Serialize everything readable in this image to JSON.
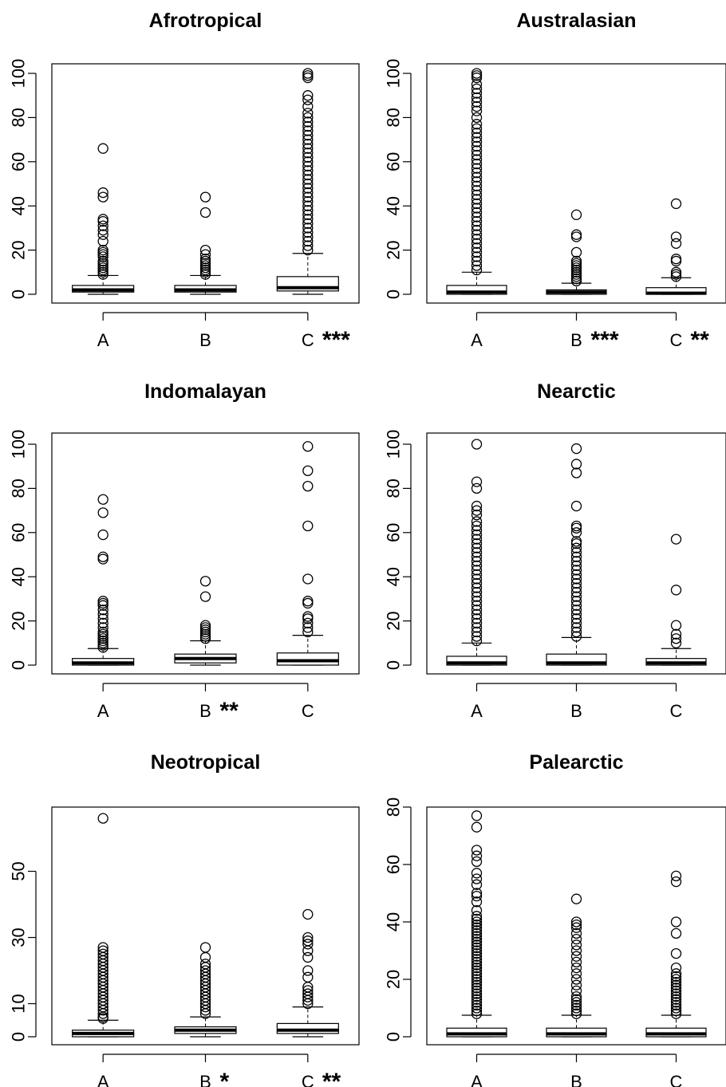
{
  "chart_data": [
    {
      "type": "boxplot",
      "title": "Afrotropical",
      "categories": [
        "A",
        "B",
        "C"
      ],
      "significance": [
        "",
        "",
        "***"
      ],
      "yticks": [
        0,
        20,
        40,
        60,
        80,
        100
      ],
      "ylim": [
        0,
        100
      ],
      "boxes": [
        {
          "whisker_low": 0,
          "q1": 1,
          "median": 2,
          "q3": 4,
          "whisker_high": 8.5,
          "outliers": [
            9,
            10,
            11,
            12,
            13,
            14,
            15,
            17,
            18,
            19,
            20,
            24,
            27,
            29,
            31,
            33,
            34,
            44,
            46,
            66
          ]
        },
        {
          "whisker_low": 0,
          "q1": 1,
          "median": 2,
          "q3": 4,
          "whisker_high": 8.5,
          "outliers": [
            9,
            10,
            11,
            12,
            13,
            14,
            15,
            16,
            18,
            20,
            37,
            44
          ]
        },
        {
          "whisker_low": 0,
          "q1": 1.5,
          "median": 3,
          "q3": 8,
          "whisker_high": 18.5,
          "outliers": [
            20,
            22,
            24,
            26,
            28,
            30,
            32,
            34,
            36,
            38,
            40,
            42,
            44,
            46,
            48,
            50,
            52,
            54,
            56,
            58,
            60,
            62,
            64,
            66,
            68,
            70,
            72,
            74,
            76,
            78,
            80,
            82,
            85,
            88,
            90,
            98,
            99,
            100
          ]
        }
      ]
    },
    {
      "type": "boxplot",
      "title": "Australasian",
      "categories": [
        "A",
        "B",
        "C"
      ],
      "significance": [
        "",
        "***",
        "**"
      ],
      "yticks": [
        0,
        20,
        40,
        60,
        80,
        100
      ],
      "ylim": [
        0,
        100
      ],
      "boxes": [
        {
          "whisker_low": 0,
          "q1": 0,
          "median": 1,
          "q3": 4,
          "whisker_high": 10,
          "outliers": [
            11,
            13,
            15,
            17,
            19,
            21,
            23,
            25,
            27,
            29,
            31,
            33,
            35,
            37,
            39,
            41,
            43,
            45,
            47,
            49,
            51,
            53,
            55,
            57,
            59,
            61,
            63,
            65,
            67,
            69,
            71,
            73,
            75,
            77,
            80,
            83,
            85,
            87,
            89,
            91,
            93,
            95,
            98,
            99,
            100
          ]
        },
        {
          "whisker_low": 0,
          "q1": 0,
          "median": 1,
          "q3": 2,
          "whisker_high": 5,
          "outliers": [
            6,
            7,
            8,
            9,
            10,
            11,
            12,
            13,
            14,
            15,
            19,
            26,
            27,
            36
          ]
        },
        {
          "whisker_low": 0,
          "q1": 0,
          "median": 0.5,
          "q3": 3,
          "whisker_high": 7.5,
          "outliers": [
            8,
            9,
            10,
            15,
            16,
            23,
            26,
            41
          ]
        }
      ]
    },
    {
      "type": "boxplot",
      "title": "Indomalayan",
      "categories": [
        "A",
        "B",
        "C"
      ],
      "significance": [
        "",
        "**",
        ""
      ],
      "yticks": [
        0,
        20,
        40,
        60,
        80,
        100
      ],
      "ylim": [
        0,
        100
      ],
      "boxes": [
        {
          "whisker_low": 0,
          "q1": 0,
          "median": 1,
          "q3": 3,
          "whisker_high": 7.5,
          "outliers": [
            8,
            9,
            10,
            11,
            12,
            13,
            14,
            15,
            17,
            19,
            21,
            23,
            25,
            27,
            28,
            29,
            48,
            49,
            59,
            69,
            75
          ]
        },
        {
          "whisker_low": 0,
          "q1": 1,
          "median": 3,
          "q3": 5,
          "whisker_high": 11,
          "outliers": [
            12,
            13,
            14,
            15,
            16,
            17,
            18,
            31,
            38
          ]
        },
        {
          "whisker_low": 0,
          "q1": 0,
          "median": 2,
          "q3": 5.5,
          "whisker_high": 13.5,
          "outliers": [
            15,
            17,
            19,
            21,
            22,
            28,
            29,
            39,
            63,
            81,
            88,
            99
          ]
        }
      ]
    },
    {
      "type": "boxplot",
      "title": "Nearctic",
      "categories": [
        "A",
        "B",
        "C"
      ],
      "significance": [
        "",
        "",
        ""
      ],
      "yticks": [
        0,
        20,
        40,
        60,
        80,
        100
      ],
      "ylim": [
        0,
        100
      ],
      "boxes": [
        {
          "whisker_low": 0,
          "q1": 0,
          "median": 1,
          "q3": 4,
          "whisker_high": 10,
          "outliers": [
            11,
            13,
            15,
            17,
            19,
            21,
            23,
            25,
            27,
            29,
            31,
            33,
            35,
            37,
            39,
            41,
            43,
            45,
            47,
            49,
            51,
            53,
            55,
            57,
            59,
            61,
            63,
            65,
            68,
            70,
            72,
            80,
            83,
            100
          ]
        },
        {
          "whisker_low": 0,
          "q1": 0,
          "median": 1,
          "q3": 5,
          "whisker_high": 12.5,
          "outliers": [
            13,
            15,
            17,
            19,
            21,
            23,
            25,
            27,
            29,
            31,
            33,
            35,
            37,
            39,
            41,
            43,
            45,
            47,
            49,
            51,
            53,
            55,
            56,
            60,
            62,
            63,
            72,
            87,
            91,
            98
          ]
        },
        {
          "whisker_low": 0,
          "q1": 0,
          "median": 1,
          "q3": 3,
          "whisker_high": 7.5,
          "outliers": [
            10,
            12,
            14,
            18,
            34,
            57
          ]
        }
      ]
    },
    {
      "type": "boxplot",
      "title": "Neotropical",
      "categories": [
        "A",
        "B",
        "C"
      ],
      "significance": [
        "",
        "*",
        "**"
      ],
      "yticks": [
        0,
        10,
        30,
        50
      ],
      "ylim": [
        0,
        67
      ],
      "boxes": [
        {
          "whisker_low": 0,
          "q1": 0,
          "median": 1,
          "q3": 2,
          "whisker_high": 5,
          "outliers": [
            5.5,
            6,
            7,
            8,
            9,
            10,
            11,
            12,
            13,
            14,
            15,
            16,
            17,
            18,
            19,
            20,
            21,
            22,
            23,
            24,
            25,
            26,
            27,
            66
          ]
        },
        {
          "whisker_low": 0,
          "q1": 1,
          "median": 2,
          "q3": 3,
          "whisker_high": 6,
          "outliers": [
            7,
            8,
            9,
            10,
            11,
            12,
            13,
            14,
            15,
            16,
            17,
            18,
            19,
            20,
            21,
            22,
            24,
            27
          ]
        },
        {
          "whisker_low": 0,
          "q1": 1,
          "median": 2,
          "q3": 4,
          "whisker_high": 9,
          "outliers": [
            10,
            11,
            12,
            13,
            14,
            15,
            18,
            20,
            24,
            26,
            28,
            29,
            30,
            37
          ]
        }
      ]
    },
    {
      "type": "boxplot",
      "title": "Palearctic",
      "categories": [
        "A",
        "B",
        "C"
      ],
      "significance": [
        "",
        "",
        ""
      ],
      "yticks": [
        0,
        20,
        40,
        60,
        80
      ],
      "ylim": [
        0,
        80
      ],
      "boxes": [
        {
          "whisker_low": 0,
          "q1": 0,
          "median": 1,
          "q3": 3,
          "whisker_high": 7.5,
          "outliers": [
            8,
            9,
            10,
            11,
            12,
            13,
            14,
            15,
            16,
            17,
            18,
            19,
            20,
            21,
            22,
            23,
            24,
            25,
            26,
            27,
            28,
            29,
            30,
            31,
            32,
            33,
            34,
            35,
            36,
            37,
            38,
            39,
            40,
            41,
            42,
            44,
            47,
            49,
            50,
            53,
            55,
            57,
            61,
            63,
            65,
            73,
            77
          ]
        },
        {
          "whisker_low": 0,
          "q1": 0,
          "median": 1,
          "q3": 3,
          "whisker_high": 7.5,
          "outliers": [
            8,
            9,
            10,
            11,
            12,
            13,
            14,
            16,
            18,
            20,
            22,
            24,
            26,
            28,
            30,
            32,
            34,
            36,
            38,
            39,
            40,
            48
          ]
        },
        {
          "whisker_low": 0,
          "q1": 0,
          "median": 1,
          "q3": 3,
          "whisker_high": 7.5,
          "outliers": [
            8,
            9,
            10,
            11,
            12,
            13,
            14,
            15,
            16,
            17,
            18,
            19,
            20,
            21,
            22,
            24,
            29,
            36,
            40,
            54,
            56
          ]
        }
      ]
    }
  ]
}
